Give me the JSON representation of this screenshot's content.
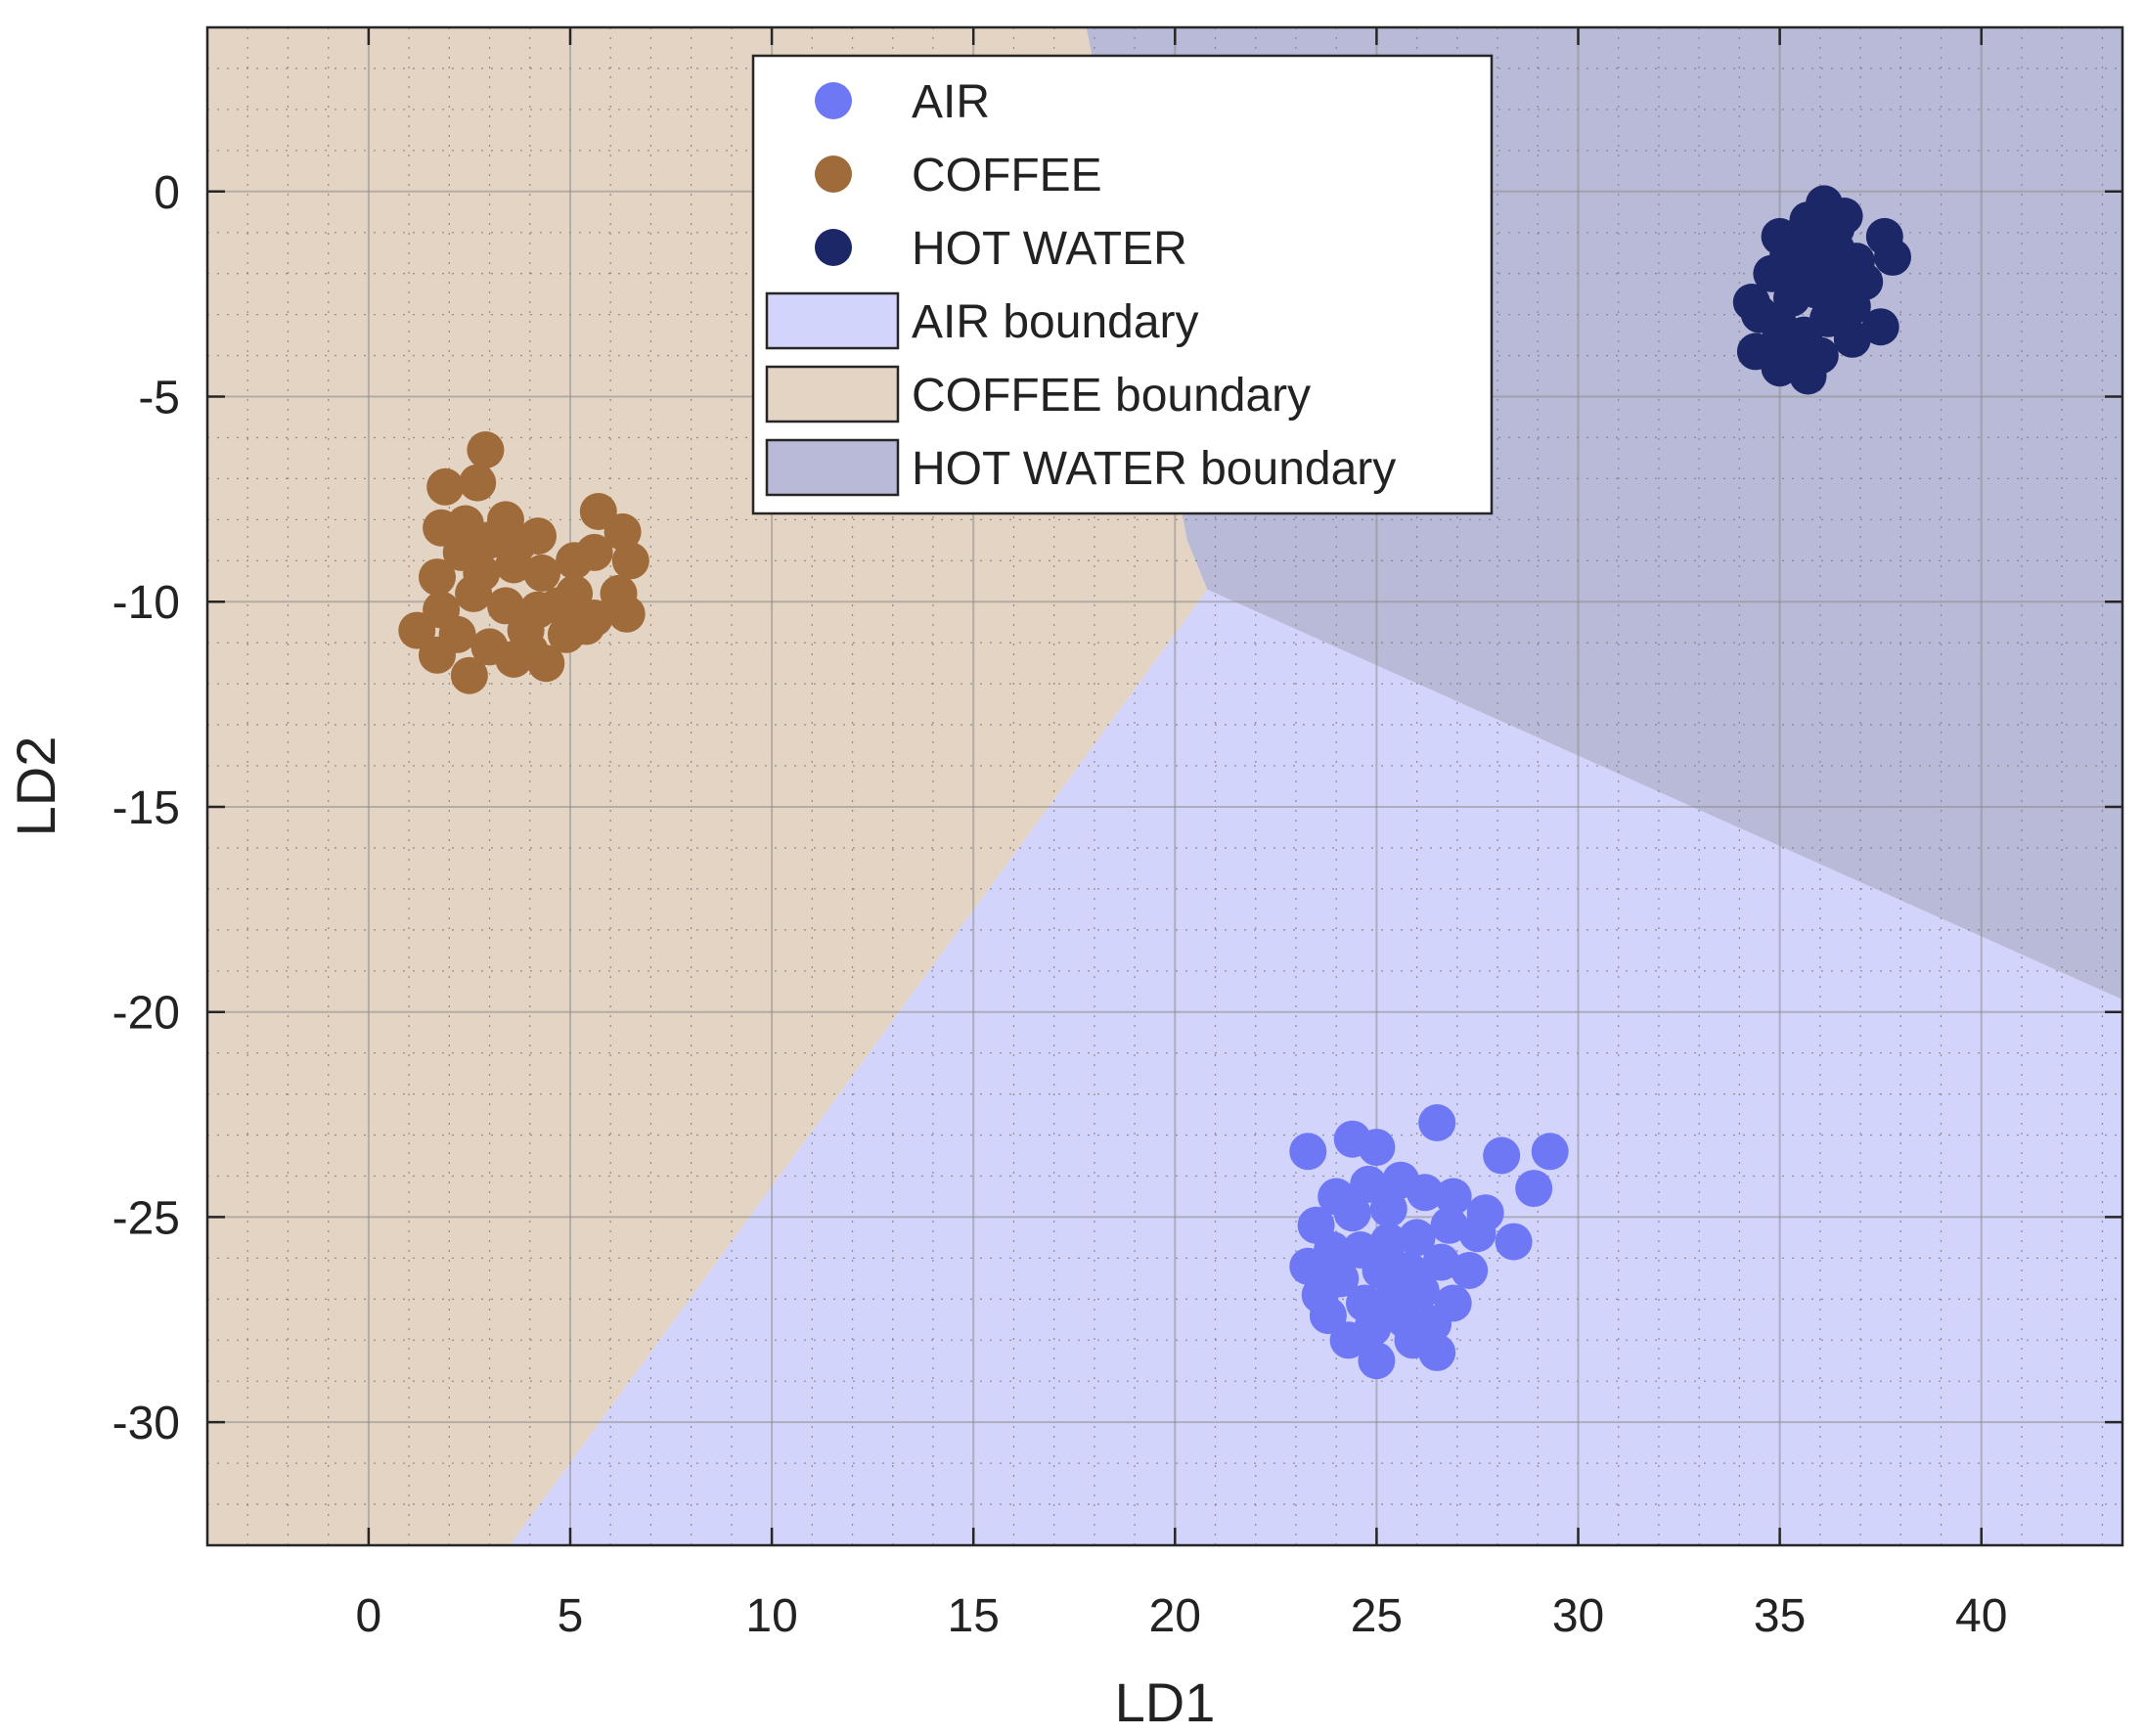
{
  "chart_data": {
    "type": "scatter",
    "title": "",
    "xlabel": "LD1",
    "ylabel": "LD2",
    "xlim": [
      -4,
      43.5
    ],
    "ylim": [
      -33,
      4
    ],
    "xticks": [
      0,
      5,
      10,
      15,
      20,
      25,
      30,
      35,
      40
    ],
    "yticks": [
      0,
      -5,
      -10,
      -15,
      -20,
      -25,
      -30
    ],
    "grid": true,
    "minor_grid": true,
    "legend_position": "top-center",
    "regions": [
      {
        "name": "AIR boundary",
        "color": "#d2d4fb",
        "polygon": [
          [
            20.8,
            -9.7
          ],
          [
            43.5,
            -19.7
          ],
          [
            43.5,
            -33
          ],
          [
            3.5,
            -33
          ]
        ]
      },
      {
        "name": "COFFEE boundary",
        "color": "#e4d4c3",
        "polygon": [
          [
            -4,
            4
          ],
          [
            17.8,
            4
          ],
          [
            20.3,
            -8.5
          ],
          [
            20.8,
            -9.7
          ],
          [
            3.5,
            -33
          ],
          [
            -4,
            -33
          ]
        ]
      },
      {
        "name": "HOT WATER boundary",
        "color": "#b8bad7",
        "polygon": [
          [
            17.8,
            4
          ],
          [
            43.5,
            4
          ],
          [
            43.5,
            -19.7
          ],
          [
            20.8,
            -9.7
          ],
          [
            20.3,
            -8.5
          ]
        ]
      }
    ],
    "series": [
      {
        "name": "AIR",
        "color": "#6f78f4",
        "points": [
          [
            23.3,
            -23.4
          ],
          [
            24.4,
            -23.1
          ],
          [
            25.0,
            -23.3
          ],
          [
            26.5,
            -22.7
          ],
          [
            28.1,
            -23.5
          ],
          [
            29.3,
            -23.4
          ],
          [
            28.9,
            -24.3
          ],
          [
            28.4,
            -25.6
          ],
          [
            27.7,
            -24.9
          ],
          [
            27.3,
            -26.3
          ],
          [
            26.9,
            -27.1
          ],
          [
            26.5,
            -28.3
          ],
          [
            25.9,
            -28.0
          ],
          [
            25.0,
            -28.5
          ],
          [
            24.3,
            -28.0
          ],
          [
            23.8,
            -27.4
          ],
          [
            23.3,
            -26.2
          ],
          [
            23.5,
            -25.2
          ],
          [
            24.0,
            -24.5
          ],
          [
            24.8,
            -24.2
          ],
          [
            25.6,
            -24.1
          ],
          [
            26.2,
            -24.4
          ],
          [
            26.8,
            -25.2
          ],
          [
            26.0,
            -25.5
          ],
          [
            25.3,
            -25.6
          ],
          [
            24.6,
            -25.8
          ],
          [
            24.1,
            -26.5
          ],
          [
            24.7,
            -27.1
          ],
          [
            25.4,
            -27.0
          ],
          [
            26.1,
            -26.8
          ],
          [
            26.6,
            -26.1
          ],
          [
            25.8,
            -26.3
          ],
          [
            25.1,
            -26.3
          ],
          [
            24.4,
            -24.9
          ],
          [
            23.9,
            -25.8
          ],
          [
            26.4,
            -27.6
          ],
          [
            25.7,
            -27.5
          ],
          [
            24.9,
            -27.7
          ],
          [
            27.5,
            -25.4
          ],
          [
            25.3,
            -24.8
          ],
          [
            23.6,
            -26.9
          ],
          [
            26.9,
            -24.5
          ]
        ]
      },
      {
        "name": "COFFEE",
        "color": "#a06b3a",
        "points": [
          [
            2.9,
            -6.3
          ],
          [
            1.9,
            -7.2
          ],
          [
            2.7,
            -7.1
          ],
          [
            1.8,
            -8.2
          ],
          [
            3.4,
            -8.0
          ],
          [
            4.2,
            -8.4
          ],
          [
            5.7,
            -7.8
          ],
          [
            6.3,
            -8.3
          ],
          [
            6.5,
            -9.0
          ],
          [
            6.2,
            -9.8
          ],
          [
            6.4,
            -10.3
          ],
          [
            5.6,
            -10.4
          ],
          [
            4.9,
            -10.8
          ],
          [
            4.4,
            -11.5
          ],
          [
            3.6,
            -11.4
          ],
          [
            2.5,
            -11.8
          ],
          [
            1.7,
            -11.3
          ],
          [
            1.2,
            -10.7
          ],
          [
            1.8,
            -10.2
          ],
          [
            1.7,
            -9.4
          ],
          [
            2.3,
            -8.8
          ],
          [
            3.0,
            -8.5
          ],
          [
            3.6,
            -9.1
          ],
          [
            4.3,
            -9.3
          ],
          [
            5.1,
            -9.0
          ],
          [
            5.6,
            -8.8
          ],
          [
            5.1,
            -9.8
          ],
          [
            4.2,
            -10.2
          ],
          [
            3.4,
            -10.1
          ],
          [
            2.6,
            -9.8
          ],
          [
            2.2,
            -10.8
          ],
          [
            3.0,
            -11.1
          ],
          [
            3.9,
            -10.7
          ],
          [
            4.7,
            -10.1
          ],
          [
            2.8,
            -9.3
          ],
          [
            3.7,
            -8.6
          ],
          [
            5.4,
            -10.6
          ],
          [
            2.4,
            -8.1
          ],
          [
            4.0,
            -11.2
          ]
        ]
      },
      {
        "name": "HOT WATER",
        "color": "#1c2768",
        "points": [
          [
            36.1,
            -0.3
          ],
          [
            35.7,
            -0.7
          ],
          [
            36.6,
            -0.6
          ],
          [
            35.0,
            -1.1
          ],
          [
            37.6,
            -1.1
          ],
          [
            37.8,
            -1.6
          ],
          [
            37.1,
            -2.2
          ],
          [
            37.5,
            -3.3
          ],
          [
            36.8,
            -3.6
          ],
          [
            36.0,
            -4.0
          ],
          [
            35.7,
            -4.5
          ],
          [
            35.0,
            -4.3
          ],
          [
            34.4,
            -3.9
          ],
          [
            34.5,
            -3.0
          ],
          [
            34.3,
            -2.7
          ],
          [
            34.8,
            -2.0
          ],
          [
            35.2,
            -1.6
          ],
          [
            35.8,
            -1.3
          ],
          [
            36.4,
            -1.4
          ],
          [
            36.9,
            -1.7
          ],
          [
            36.5,
            -2.3
          ],
          [
            35.9,
            -2.4
          ],
          [
            35.3,
            -2.6
          ],
          [
            35.0,
            -3.3
          ],
          [
            35.6,
            -3.5
          ],
          [
            36.2,
            -3.1
          ],
          [
            36.8,
            -2.8
          ],
          [
            35.4,
            -1.9
          ],
          [
            36.2,
            -2.0
          ],
          [
            34.9,
            -3.8
          ],
          [
            36.4,
            -0.9
          ],
          [
            35.5,
            -4.0
          ]
        ]
      }
    ],
    "legend": [
      {
        "label": "AIR",
        "kind": "marker",
        "color": "#6f78f4"
      },
      {
        "label": "COFFEE",
        "kind": "marker",
        "color": "#a06b3a"
      },
      {
        "label": "HOT WATER",
        "kind": "marker",
        "color": "#1c2768"
      },
      {
        "label": "AIR boundary",
        "kind": "patch",
        "color": "#d2d4fb"
      },
      {
        "label": "COFFEE boundary",
        "kind": "patch",
        "color": "#e4d4c3"
      },
      {
        "label": "HOT WATER boundary",
        "kind": "patch",
        "color": "#b8bad7"
      }
    ]
  }
}
